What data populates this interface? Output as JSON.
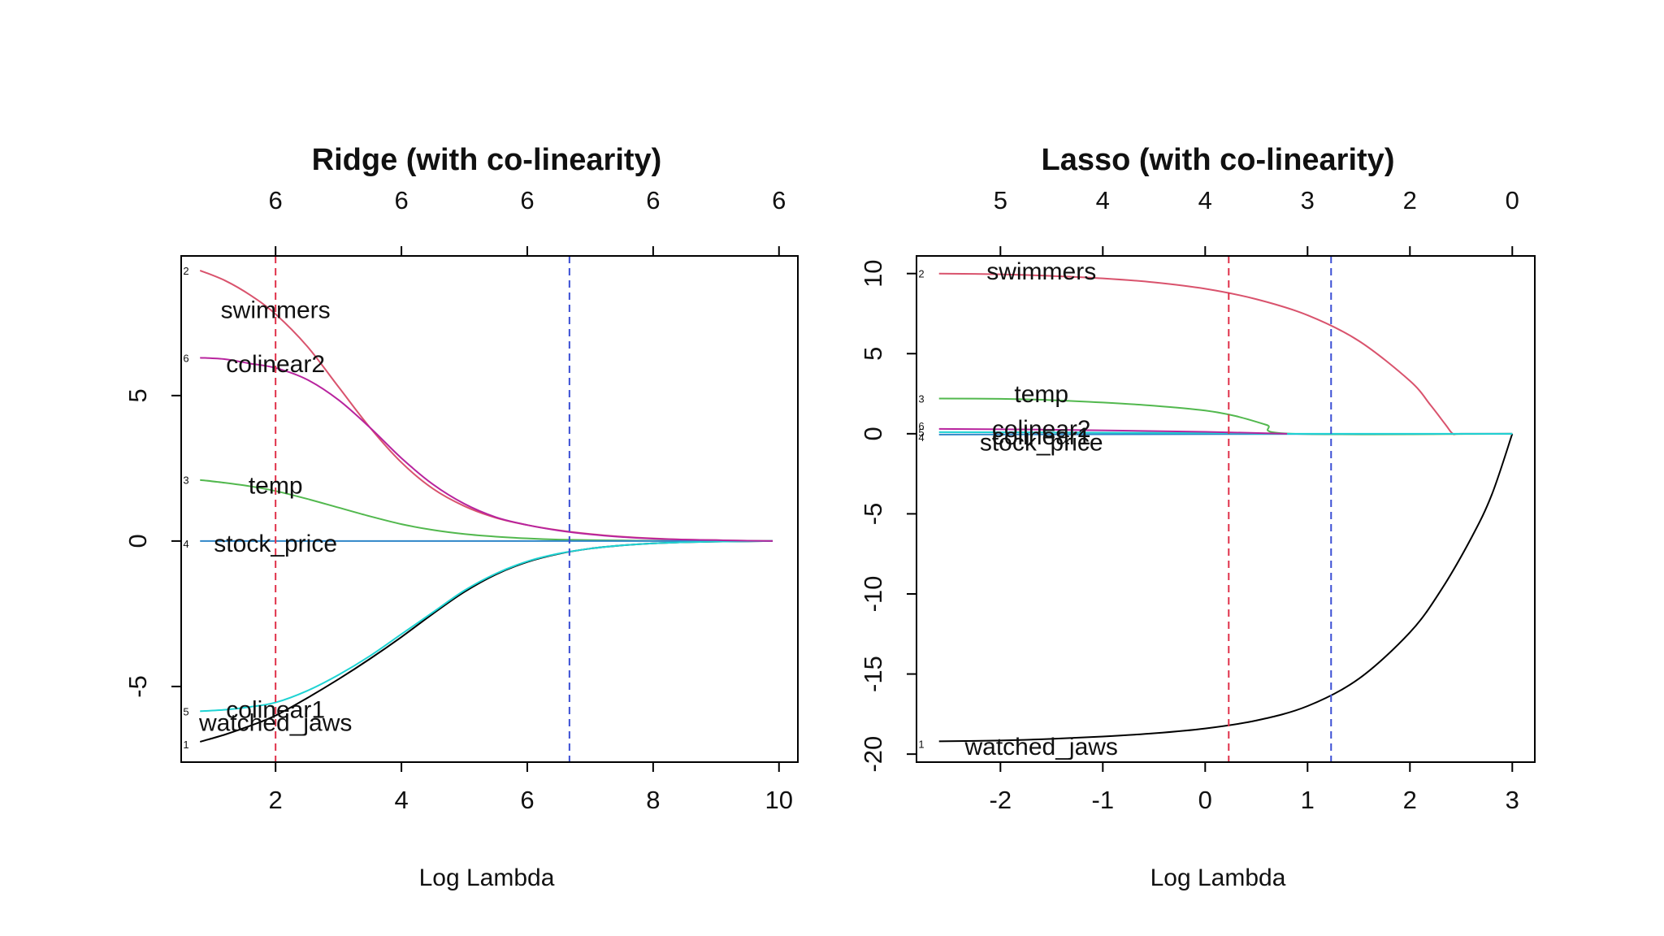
{
  "chart_data": [
    {
      "type": "line",
      "title": "Ridge (with co-linearity)",
      "xlabel": "Log Lambda",
      "ylabel": "",
      "xlim": [
        0.5,
        10.3
      ],
      "ylim": [
        -7.6,
        9.8
      ],
      "x_ticks": [
        2,
        4,
        6,
        8,
        10
      ],
      "y_ticks": [
        -5,
        0,
        5
      ],
      "top_axis": {
        "positions": [
          2,
          4,
          6,
          8,
          10
        ],
        "labels": [
          "6",
          "6",
          "6",
          "6",
          "6"
        ]
      },
      "vlines": [
        {
          "x": 2.0,
          "color": "#e0314a"
        },
        {
          "x": 6.67,
          "color": "#3b4fd4"
        }
      ],
      "series": [
        {
          "index": "1",
          "name": "watched_jaws",
          "color": "#000000",
          "label_x": 2.0,
          "x": [
            0.8,
            1.2,
            1.6,
            2.0,
            2.5,
            3.0,
            3.5,
            4.0,
            4.5,
            5.0,
            5.5,
            6.0,
            6.5,
            7.0,
            7.5,
            8.0,
            8.5,
            9.0,
            9.5,
            9.9
          ],
          "y": [
            -6.9,
            -6.65,
            -6.35,
            -6.0,
            -5.4,
            -4.75,
            -4.05,
            -3.3,
            -2.5,
            -1.75,
            -1.15,
            -0.72,
            -0.44,
            -0.26,
            -0.15,
            -0.08,
            -0.04,
            -0.02,
            -0.01,
            0.0
          ]
        },
        {
          "index": "2",
          "name": "swimmers",
          "color": "#d9536d",
          "label_x": 2.0,
          "x": [
            0.8,
            1.2,
            1.6,
            2.0,
            2.5,
            3.0,
            3.5,
            4.0,
            4.5,
            5.0,
            5.5,
            6.0,
            6.5,
            7.0,
            7.5,
            8.0,
            8.5,
            9.0,
            9.5,
            9.9
          ],
          "y": [
            9.3,
            8.95,
            8.45,
            7.8,
            6.7,
            5.3,
            3.9,
            2.7,
            1.8,
            1.2,
            0.8,
            0.55,
            0.37,
            0.24,
            0.15,
            0.09,
            0.05,
            0.03,
            0.01,
            0.0
          ]
        },
        {
          "index": "3",
          "name": "temp",
          "color": "#52b84e",
          "label_x": 2.0,
          "x": [
            0.8,
            1.2,
            1.6,
            2.0,
            2.5,
            3.0,
            3.5,
            4.0,
            4.5,
            5.0,
            5.5,
            6.0,
            6.5,
            7.0,
            7.5,
            8.0,
            8.5,
            9.0,
            9.5,
            9.9
          ],
          "y": [
            2.1,
            2.0,
            1.88,
            1.72,
            1.45,
            1.15,
            0.85,
            0.58,
            0.38,
            0.24,
            0.15,
            0.09,
            0.05,
            0.03,
            0.02,
            0.01,
            0.0,
            0.0,
            0.0,
            0.0
          ]
        },
        {
          "index": "4",
          "name": "stock_price",
          "color": "#2f86c8",
          "label_x": 2.0,
          "x": [
            0.8,
            3.0,
            6.0,
            9.9
          ],
          "y": [
            0.0,
            0.0,
            0.0,
            0.0
          ]
        },
        {
          "index": "5",
          "name": "colinear1",
          "color": "#1fd3d3",
          "label_x": 2.0,
          "x": [
            0.8,
            1.2,
            1.6,
            2.0,
            2.5,
            3.0,
            3.5,
            4.0,
            4.5,
            5.0,
            5.5,
            6.0,
            6.5,
            7.0,
            7.5,
            8.0,
            8.5,
            9.0,
            9.5,
            9.9
          ],
          "y": [
            -5.85,
            -5.8,
            -5.7,
            -5.55,
            -5.15,
            -4.6,
            -3.95,
            -3.2,
            -2.45,
            -1.7,
            -1.12,
            -0.7,
            -0.43,
            -0.26,
            -0.15,
            -0.08,
            -0.04,
            -0.02,
            -0.01,
            0.0
          ]
        },
        {
          "index": "6",
          "name": "colinear2",
          "color": "#b8249e",
          "label_x": 2.0,
          "x": [
            0.8,
            1.2,
            1.6,
            2.0,
            2.5,
            3.0,
            3.5,
            4.0,
            4.5,
            5.0,
            5.5,
            6.0,
            6.5,
            7.0,
            7.5,
            8.0,
            8.5,
            9.0,
            9.5,
            9.9
          ],
          "y": [
            6.3,
            6.25,
            6.1,
            5.95,
            5.55,
            4.85,
            3.9,
            2.85,
            1.95,
            1.28,
            0.82,
            0.55,
            0.36,
            0.23,
            0.14,
            0.08,
            0.05,
            0.03,
            0.01,
            0.0
          ]
        }
      ]
    },
    {
      "type": "line",
      "title": "Lasso (with co-linearity)",
      "xlabel": "Log Lambda",
      "ylabel": "",
      "xlim": [
        -2.82,
        3.22
      ],
      "ylim": [
        -20.5,
        11.1
      ],
      "x_ticks": [
        -2,
        -1,
        0,
        1,
        2,
        3
      ],
      "y_ticks": [
        -20,
        -15,
        -10,
        -5,
        0,
        5,
        10
      ],
      "top_axis": {
        "positions": [
          -2,
          -1,
          0,
          1,
          2,
          3
        ],
        "labels": [
          "5",
          "4",
          "4",
          "3",
          "2",
          "0"
        ]
      },
      "vlines": [
        {
          "x": 0.23,
          "color": "#e0314a"
        },
        {
          "x": 1.23,
          "color": "#3b4fd4"
        }
      ],
      "series": [
        {
          "index": "1",
          "name": "watched_jaws",
          "color": "#000000",
          "label_x": -1.6,
          "x": [
            -2.6,
            -2.0,
            -1.5,
            -1.0,
            -0.5,
            0.0,
            0.5,
            1.0,
            1.5,
            2.0,
            2.3,
            2.6,
            2.8,
            3.0
          ],
          "y": [
            -19.2,
            -19.15,
            -19.05,
            -18.9,
            -18.7,
            -18.4,
            -17.9,
            -17.0,
            -15.3,
            -12.4,
            -9.8,
            -6.5,
            -3.8,
            0.0
          ]
        },
        {
          "index": "2",
          "name": "swimmers",
          "color": "#d9536d",
          "label_x": -1.6,
          "x": [
            -2.6,
            -2.0,
            -1.5,
            -1.0,
            -0.5,
            0.0,
            0.5,
            1.0,
            1.5,
            2.0,
            2.2,
            2.35,
            2.42,
            2.5,
            3.0
          ],
          "y": [
            10.0,
            9.95,
            9.85,
            9.7,
            9.45,
            9.05,
            8.4,
            7.4,
            5.8,
            3.3,
            1.8,
            0.55,
            0.0,
            0.0,
            0.0
          ]
        },
        {
          "index": "3",
          "name": "temp",
          "color": "#52b84e",
          "label_x": -1.6,
          "x": [
            -2.6,
            -2.0,
            -1.5,
            -1.0,
            -0.5,
            0.0,
            0.3,
            0.6,
            0.85,
            3.0
          ],
          "y": [
            2.2,
            2.18,
            2.1,
            1.95,
            1.75,
            1.45,
            1.1,
            0.55,
            0.0,
            0.0
          ]
        },
        {
          "index": "4",
          "name": "stock_price",
          "color": "#2f86c8",
          "label_x": -1.6,
          "x": [
            -2.6,
            3.0
          ],
          "y": [
            -0.05,
            0.0
          ]
        },
        {
          "index": "5",
          "name": "colinear1",
          "color": "#1fd3d3",
          "label_x": -1.6,
          "x": [
            -2.6,
            0.0,
            0.8,
            3.0
          ],
          "y": [
            0.1,
            0.05,
            0.0,
            0.0
          ]
        },
        {
          "index": "6",
          "name": "colinear2",
          "color": "#b8249e",
          "label_x": -1.6,
          "x": [
            -2.6,
            -1.5,
            0.0,
            0.8
          ],
          "y": [
            0.3,
            0.25,
            0.12,
            0.0
          ]
        }
      ]
    }
  ]
}
